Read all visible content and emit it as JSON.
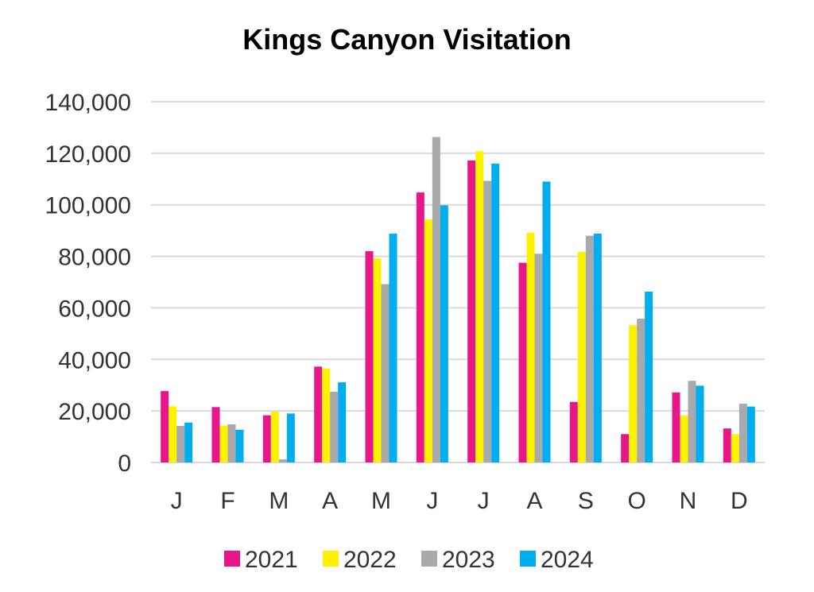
{
  "chart_data": {
    "type": "bar",
    "title": "Kings Canyon Visitation",
    "xlabel": "",
    "ylabel": "",
    "categories": [
      "J",
      "F",
      "M",
      "A",
      "M",
      "J",
      "J",
      "A",
      "S",
      "O",
      "N",
      "D"
    ],
    "ylim": [
      0,
      140000
    ],
    "yticks": [
      "0",
      "20,000",
      "40,000",
      "60,000",
      "80,000",
      "100,000",
      "120,000",
      "140,000"
    ],
    "grid": true,
    "legend_position": "bottom",
    "series": [
      {
        "name": "2021",
        "color": "#e8168b",
        "values": [
          27700,
          21500,
          18300,
          37200,
          82000,
          104800,
          117200,
          77500,
          23500,
          11000,
          27200,
          13200
        ]
      },
      {
        "name": "2022",
        "color": "#fff200",
        "values": [
          21800,
          14300,
          19700,
          36500,
          79200,
          94300,
          120800,
          89200,
          81700,
          53300,
          18200,
          11000
        ]
      },
      {
        "name": "2023",
        "color": "#a7a9ac",
        "values": [
          14200,
          14800,
          1200,
          27500,
          69200,
          126300,
          109300,
          81000,
          88000,
          55800,
          31700,
          22800
        ]
      },
      {
        "name": "2024",
        "color": "#00aeef",
        "values": [
          15500,
          12700,
          19000,
          31100,
          88800,
          99800,
          116000,
          109000,
          88800,
          66300,
          29800,
          21700
        ]
      }
    ]
  }
}
